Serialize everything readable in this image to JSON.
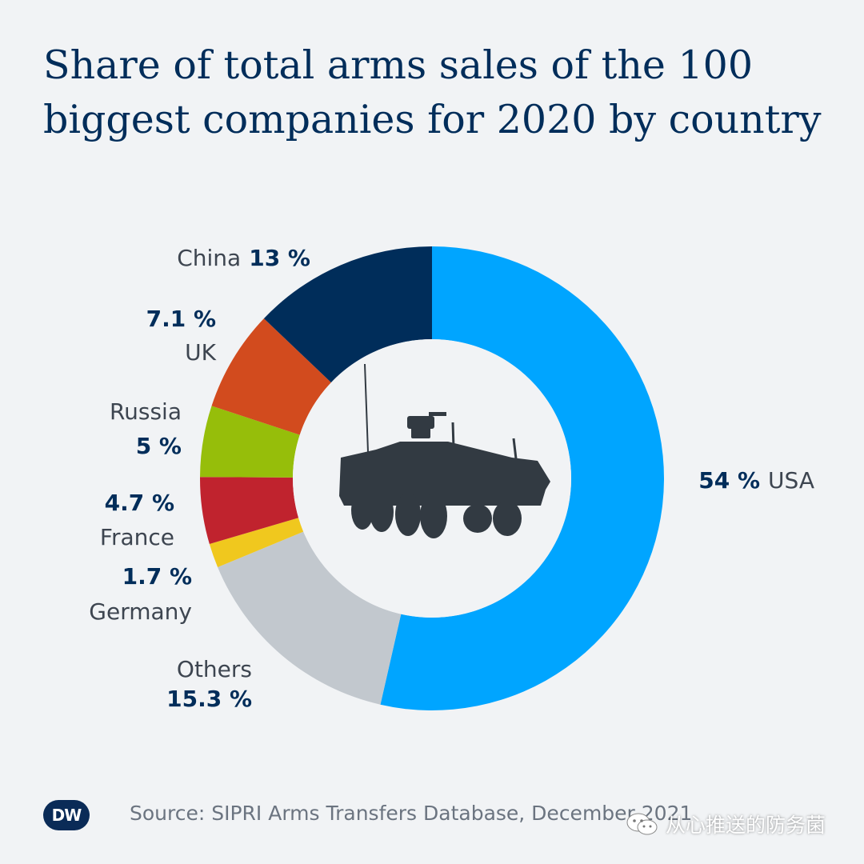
{
  "title": {
    "line1": "Share of total arms sales of the 100",
    "line2": "biggest companies for 2020 by country"
  },
  "chart_data": {
    "type": "pie",
    "variant": "donut",
    "title": "Share of total arms sales of the 100 biggest companies for 2020 by country",
    "unit": "%",
    "slices": [
      {
        "label": "USA",
        "value": 54,
        "value_text": "54 %",
        "color": "#00a5ff"
      },
      {
        "label": "Others",
        "value": 15.3,
        "value_text": "15.3 %",
        "color": "#c2c8ce"
      },
      {
        "label": "Germany",
        "value": 1.7,
        "value_text": "1.7 %",
        "color": "#f0c81e"
      },
      {
        "label": "France",
        "value": 4.7,
        "value_text": "4.7 %",
        "color": "#c0232e"
      },
      {
        "label": "Russia",
        "value": 5,
        "value_text": "5 %",
        "color": "#96be0a"
      },
      {
        "label": "UK",
        "value": 7.1,
        "value_text": "7.1 %",
        "color": "#d24b1e"
      },
      {
        "label": "China",
        "value": 13,
        "value_text": "13 %",
        "color": "#002d5a"
      }
    ],
    "center_icon": "armored-vehicle-icon"
  },
  "footer": {
    "logo": "DW",
    "source": "Source: SIPRI Arms Transfers Database, December 2021",
    "watermark": "从心推送的防务菌",
    "watermark_icon": "wechat-icon"
  }
}
